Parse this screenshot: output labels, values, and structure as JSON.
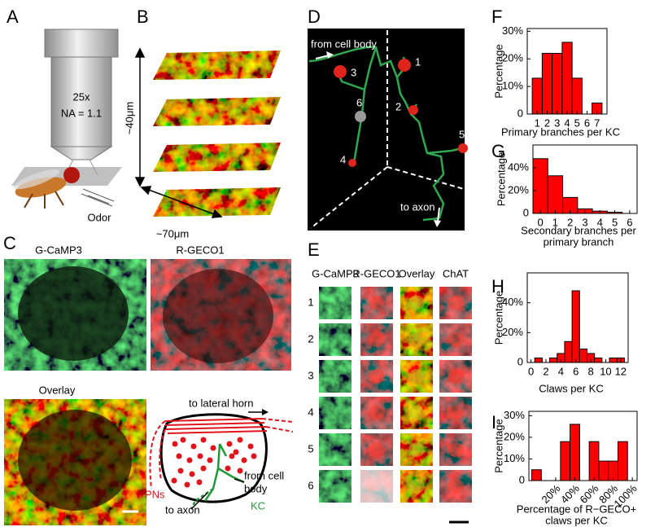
{
  "panel_labels": [
    "A",
    "B",
    "C",
    "D",
    "E",
    "F",
    "G",
    "H",
    "I"
  ],
  "panel_a": {
    "objective": [
      "25x",
      "NA = 1.1"
    ],
    "stimulus": "Odor"
  },
  "panel_b": {
    "depth": "~40μm",
    "width": "~70μm"
  },
  "panel_c": {
    "images": [
      "G-CaMP3",
      "R-GECO1",
      "Overlay"
    ],
    "diagram": {
      "lateral_horn": "to lateral horn",
      "cell_body": [
        "from cell",
        "body"
      ],
      "pns": "PNs",
      "axon": "to axon",
      "kc": "KC"
    }
  },
  "panel_d": {
    "cell_body": "from cell body",
    "axon": "to axon",
    "claws": [
      "1",
      "2",
      "3",
      "4",
      "5",
      "6"
    ]
  },
  "panel_e": {
    "columns": [
      "G-CaMP3",
      "R-GECO1",
      "Overlay",
      "ChAT"
    ],
    "rows": [
      "1",
      "2",
      "3",
      "4",
      "5",
      "6"
    ]
  },
  "chart_data": [
    {
      "type": "histogram",
      "ylabel": "Percentage",
      "xlabel": [
        "Primary branches per KC"
      ],
      "color": "#ff0000",
      "bins": [
        0.5,
        1.5,
        2.5,
        3.5,
        4.5,
        5.5,
        6.5,
        7.5
      ],
      "values": [
        13,
        22,
        22,
        26,
        13,
        0,
        4
      ],
      "xlim": [
        0,
        8
      ],
      "xticks": [
        1,
        2,
        3,
        4,
        5,
        6,
        7
      ],
      "ylim": [
        0,
        31
      ],
      "yticks": [
        0,
        {
          "value": 10,
          "label": "10%"
        },
        {
          "value": 20,
          "label": "20%"
        },
        {
          "value": 30,
          "label": "30%"
        }
      ]
    },
    {
      "type": "histogram",
      "ylabel": "Percentage",
      "xlabel": [
        "Secondary branches per",
        "primary branch"
      ],
      "color": "#ff0000",
      "bins": [
        -0.5,
        0.5,
        1.5,
        2.5,
        3.5,
        4.5,
        5.5
      ],
      "values": [
        48,
        33,
        14,
        4,
        2,
        1
      ],
      "xlim": [
        -0.5,
        6.5
      ],
      "xticks": [
        0,
        1,
        2,
        3,
        4,
        5,
        6
      ],
      "ylim": [
        0,
        60
      ],
      "yticks": [
        0,
        {
          "value": 20,
          "label": "20%"
        },
        {
          "value": 40,
          "label": "40%"
        }
      ]
    },
    {
      "type": "histogram",
      "ylabel": "Percentage",
      "xlabel": [
        "Claws per KC"
      ],
      "color": "#ff0000",
      "bins": [
        0.5,
        1.5,
        2.5,
        3.5,
        4.5,
        5.5,
        6.5,
        7.5,
        8.5,
        9.5,
        10.5,
        11.5,
        12.5
      ],
      "values": [
        3,
        0,
        3,
        6,
        14,
        48,
        9,
        6,
        3,
        0,
        3,
        3
      ],
      "xlim": [
        -0.5,
        13
      ],
      "xticks": [
        0,
        2,
        4,
        6,
        8,
        10,
        12
      ],
      "ylim": [
        0,
        60
      ],
      "yticks": [
        0,
        {
          "value": 20,
          "label": "20%"
        },
        {
          "value": 40,
          "label": "40%"
        }
      ]
    },
    {
      "type": "histogram",
      "ylabel": "Percentage",
      "xlabel": [
        "Percentage of R−GECO+",
        "claws per KC"
      ],
      "color": "#ff0000",
      "bins": [
        -5,
        5,
        15,
        25,
        35,
        45,
        55,
        65,
        75,
        85,
        95
      ],
      "values": [
        5,
        0,
        0,
        18,
        26,
        0,
        18,
        9,
        9,
        18
      ],
      "xlim": [
        -8,
        105
      ],
      "xticks": [
        {
          "value": 20,
          "label": "20%"
        },
        {
          "value": 40,
          "label": "40%"
        },
        {
          "value": 60,
          "label": "60%"
        },
        {
          "value": 80,
          "label": "80%"
        },
        {
          "value": 100,
          "label": "100%"
        }
      ],
      "ylim": [
        0,
        32
      ],
      "yticks": [
        0,
        {
          "value": 10,
          "label": "10%"
        },
        {
          "value": 20,
          "label": "20%"
        },
        {
          "value": 30,
          "label": "30%"
        }
      ]
    }
  ]
}
